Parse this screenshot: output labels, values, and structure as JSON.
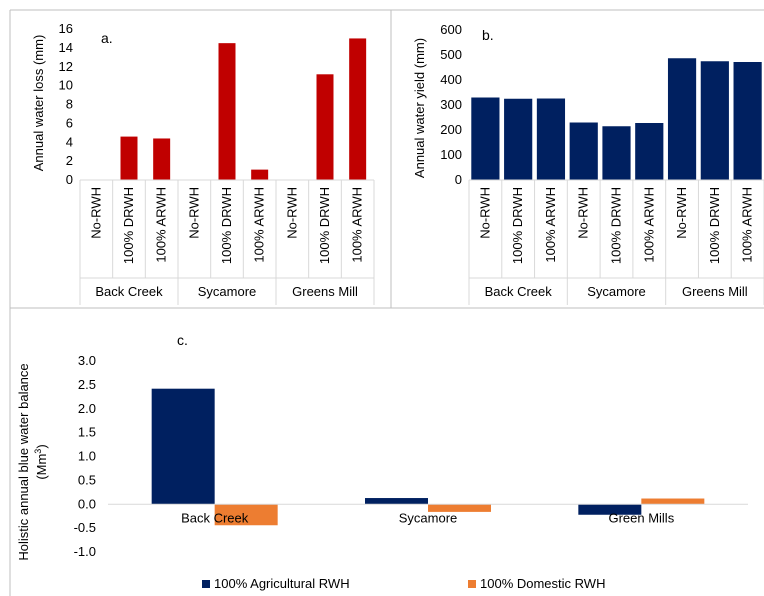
{
  "chart_data": [
    {
      "type": "bar",
      "panel_label": "a.",
      "ylabel": "Annual water loss (mm)",
      "ylim": [
        0,
        16
      ],
      "yticks": [
        "0",
        "2",
        "4",
        "6",
        "8",
        "10",
        "12",
        "14",
        "16"
      ],
      "grid": false,
      "groups": [
        "Back Creek",
        "Sycamore",
        "Greens Mill"
      ],
      "categories": [
        "No-RWH",
        "100% DRWH",
        "100% ARWH",
        "No-RWH",
        "100% DRWH",
        "100% ARWH",
        "No-RWH",
        "100% DRWH",
        "100% ARWH"
      ],
      "values": [
        0,
        4.6,
        4.4,
        0,
        14.5,
        1.1,
        0,
        11.2,
        15.0
      ],
      "color": "#C00000"
    },
    {
      "type": "bar",
      "panel_label": "b.",
      "ylabel": "Annual water yield (mm)",
      "ylim": [
        0,
        600
      ],
      "yticks": [
        "0",
        "100",
        "200",
        "300",
        "400",
        "500",
        "600"
      ],
      "grid": false,
      "groups": [
        "Back Creek",
        "Sycamore",
        "Greens Mill"
      ],
      "categories": [
        "No-RWH",
        "100% DRWH",
        "100% ARWH",
        "No-RWH",
        "100% DRWH",
        "100% ARWH",
        "No-RWH",
        "100% DRWH",
        "100% ARWH"
      ],
      "values": [
        330,
        325,
        326,
        230,
        215,
        228,
        487,
        475,
        472
      ],
      "color": "#002060"
    },
    {
      "type": "bar",
      "panel_label": "c.",
      "ylabel_line1": "Holistic annual blue water balance",
      "ylabel_line2_base": "(Mm",
      "ylabel_line2_sup": "3",
      "ylabel_line2_end": ")",
      "ylim": [
        -1.0,
        3.0
      ],
      "yticks": [
        "-1.0",
        "-0.5",
        "0.0",
        "0.5",
        "1.0",
        "1.5",
        "2.0",
        "2.5",
        "3.0"
      ],
      "grid": false,
      "legend_position": "bottom",
      "categories": [
        "Back Creek",
        "Sycamore",
        "Green Mills"
      ],
      "series": [
        {
          "name": "100% Agricultural RWH",
          "values": [
            2.42,
            0.13,
            -0.22
          ],
          "color": "#002060"
        },
        {
          "name": "100% Domestic RWH",
          "values": [
            -0.44,
            -0.16,
            0.12
          ],
          "color": "#ED7D31"
        }
      ]
    }
  ]
}
